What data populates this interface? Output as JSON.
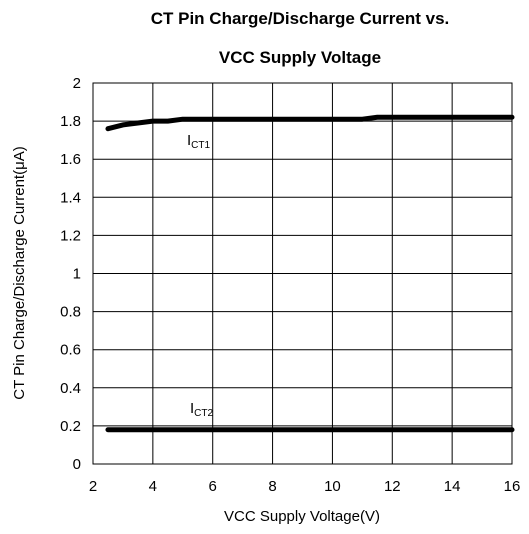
{
  "chart_data": {
    "type": "line",
    "title": [
      "CT Pin Charge/Discharge Current vs.",
      "VCC Supply Voltage"
    ],
    "x_label": "VCC Supply Voltage(V)",
    "y_label": "CT Pin Charge/Discharge Current(μA)",
    "xlim": [
      2,
      16
    ],
    "xticks": [
      2,
      4,
      6,
      8,
      10,
      12,
      14,
      16
    ],
    "ylim": [
      0,
      2
    ],
    "yticks": [
      0,
      0.2,
      0.4,
      0.6,
      0.8,
      1,
      1.2,
      1.4,
      1.6,
      1.8,
      2
    ],
    "grid": true,
    "series": [
      {
        "name_parts": [
          "I",
          "CT1"
        ],
        "color": "#000000",
        "x": [
          2.5,
          3,
          3.5,
          4,
          4.5,
          5,
          6,
          7,
          8,
          9,
          10,
          11,
          11.5,
          12,
          13,
          14,
          15,
          16
        ],
        "values": [
          1.76,
          1.78,
          1.79,
          1.8,
          1.8,
          1.81,
          1.81,
          1.81,
          1.81,
          1.81,
          1.81,
          1.81,
          1.82,
          1.82,
          1.82,
          1.82,
          1.82,
          1.82
        ]
      },
      {
        "name_parts": [
          "I",
          "CT2"
        ],
        "color": "#000000",
        "x": [
          2.5,
          4,
          6,
          8,
          10,
          12,
          14,
          16
        ],
        "values": [
          0.18,
          0.18,
          0.18,
          0.18,
          0.18,
          0.18,
          0.18,
          0.18
        ]
      }
    ]
  }
}
